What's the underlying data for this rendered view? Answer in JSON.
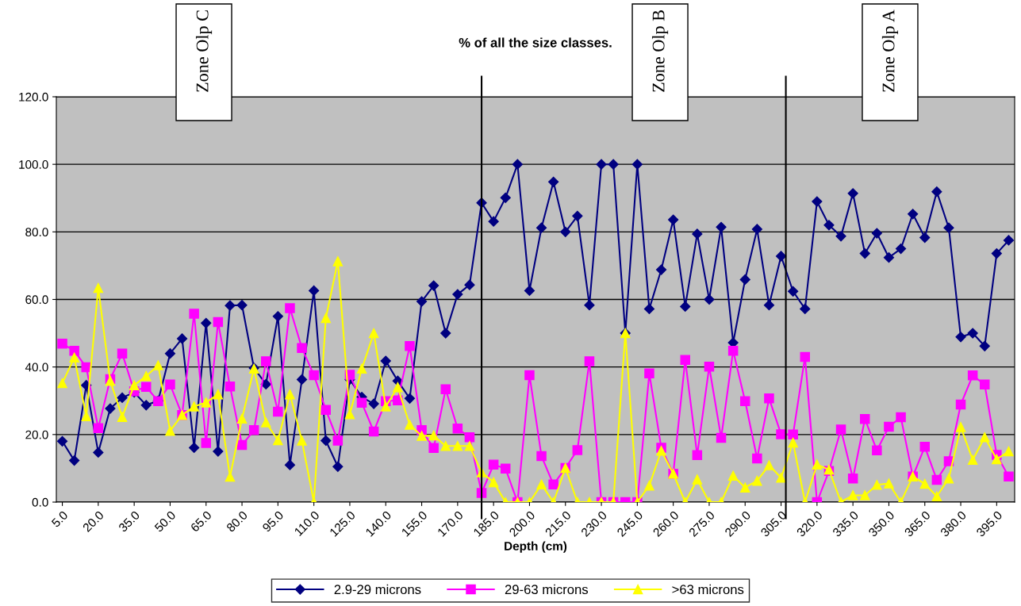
{
  "chart_data": {
    "type": "line",
    "title": "% of all the size classes.",
    "xlabel": "Depth (cm)",
    "x": [
      5,
      10,
      15,
      20,
      25,
      30,
      35,
      40,
      45,
      50,
      55,
      60,
      65,
      70,
      75,
      80,
      85,
      90,
      95,
      100,
      105,
      110,
      115,
      120,
      125,
      130,
      135,
      140,
      145,
      150,
      155,
      160,
      165,
      170,
      175,
      180,
      185,
      190,
      195,
      200,
      205,
      210,
      215,
      220,
      225,
      230,
      235,
      240,
      245,
      250,
      255,
      260,
      265,
      270,
      275,
      280,
      285,
      290,
      295,
      300,
      305,
      310,
      315,
      320,
      325,
      330,
      335,
      340,
      345,
      350,
      355,
      360,
      365,
      370,
      375,
      380,
      385,
      390,
      395,
      400
    ],
    "xlim": [
      2.5,
      402.5
    ],
    "xticks": [
      {
        "value": 5,
        "label": "5.0"
      },
      {
        "value": 20,
        "label": "20.0"
      },
      {
        "value": 35,
        "label": "35.0"
      },
      {
        "value": 50,
        "label": "50.0"
      },
      {
        "value": 65,
        "label": "65.0"
      },
      {
        "value": 80,
        "label": "80.0"
      },
      {
        "value": 95,
        "label": "95.0"
      },
      {
        "value": 110,
        "label": "110.0"
      },
      {
        "value": 125,
        "label": "125.0"
      },
      {
        "value": 140,
        "label": "140.0"
      },
      {
        "value": 155,
        "label": "155.0"
      },
      {
        "value": 170,
        "label": "170.0"
      },
      {
        "value": 185,
        "label": "185.0"
      },
      {
        "value": 200,
        "label": "200.0"
      },
      {
        "value": 215,
        "label": "215.0"
      },
      {
        "value": 230,
        "label": "230.0"
      },
      {
        "value": 245,
        "label": "245.0"
      },
      {
        "value": 260,
        "label": "260.0"
      },
      {
        "value": 275,
        "label": "275.0"
      },
      {
        "value": 290,
        "label": "290.0"
      },
      {
        "value": 305,
        "label": "305.0"
      },
      {
        "value": 320,
        "label": "320.0"
      },
      {
        "value": 335,
        "label": "335.0"
      },
      {
        "value": 350,
        "label": "350.0"
      },
      {
        "value": 365,
        "label": "365.0"
      },
      {
        "value": 380,
        "label": "380.0"
      },
      {
        "value": 395,
        "label": "395.0"
      }
    ],
    "ylim": [
      0,
      120
    ],
    "yticks": [
      {
        "value": 0,
        "label": "0.0"
      },
      {
        "value": 20,
        "label": "20.0"
      },
      {
        "value": 40,
        "label": "40.0"
      },
      {
        "value": 60,
        "label": "60.0"
      },
      {
        "value": 80,
        "label": "80.0"
      },
      {
        "value": 100,
        "label": "100.0"
      },
      {
        "value": 120,
        "label": "120.0"
      }
    ],
    "grid": "y",
    "legend": "bottom",
    "line_style": "solid",
    "series": [
      {
        "name": "2.9-29 microns",
        "color": "#000080",
        "marker": "diamond",
        "values": [
          18,
          12.3,
          34.6,
          14.7,
          27.7,
          30.9,
          32.5,
          28.7,
          30,
          44,
          48.4,
          16.1,
          53,
          15,
          58.2,
          58.3,
          39.7,
          34.9,
          55,
          11,
          36.3,
          62.6,
          18.2,
          10.5,
          36.3,
          31.1,
          29.1,
          41.8,
          35.9,
          30.7,
          59.4,
          64.1,
          50,
          61.5,
          64.3,
          88.6,
          83.1,
          90.1,
          100,
          62.6,
          81.2,
          94.8,
          80,
          84.7,
          58.3,
          100,
          100,
          50,
          100,
          57.2,
          68.8,
          83.6,
          57.9,
          79.4,
          60,
          81.4,
          47.2,
          65.9,
          80.8,
          58.3,
          72.8,
          62.4,
          57.2,
          89,
          82,
          78.7,
          91.4,
          73.6,
          79.6,
          72.4,
          75,
          85.3,
          78.3,
          91.9,
          81.2,
          48.9,
          50,
          46.2,
          73.6,
          77.5
        ]
      },
      {
        "name": "29-63 microns",
        "color": "#ff00ff",
        "marker": "square",
        "values": [
          46.9,
          44.8,
          39.9,
          21.9,
          36.4,
          44,
          32.8,
          34.1,
          29.9,
          34.8,
          25.8,
          55.8,
          17.5,
          53.3,
          34.2,
          16.9,
          21.3,
          41.7,
          26.8,
          57.4,
          45.6,
          37.6,
          27.3,
          18.2,
          37.7,
          29.4,
          20.9,
          29.9,
          30.1,
          46.2,
          21.3,
          16,
          33.4,
          21.8,
          19.2,
          2.7,
          11.1,
          9.9,
          0,
          37.6,
          13.6,
          5.2,
          10.1,
          15.4,
          41.7,
          0,
          0,
          0,
          0,
          38.1,
          16.1,
          8.4,
          42.1,
          13.9,
          40.1,
          19,
          44.8,
          29.9,
          12.9,
          30.7,
          20.1,
          20,
          43,
          0,
          9.2,
          21.5,
          7,
          24.6,
          15.3,
          22.3,
          25.1,
          7.6,
          16.4,
          6.6,
          12.1,
          28.9,
          37.5,
          34.8,
          14,
          7.6
        ]
      },
      {
        "name": ">63 microns",
        "color": "#ffff00",
        "marker": "triangle",
        "values": [
          35.2,
          42.8,
          25.4,
          63.4,
          35.9,
          25.2,
          34.6,
          37.3,
          40.5,
          21.1,
          25.8,
          28.3,
          29.5,
          31.9,
          7.5,
          24.7,
          39.5,
          23.6,
          18.3,
          31.9,
          18.2,
          0,
          54.5,
          71.3,
          26,
          39.5,
          50,
          28.3,
          34,
          22.9,
          19.6,
          19.7,
          16.6,
          16.6,
          16.6,
          8.8,
          5.9,
          0,
          0,
          0,
          5.2,
          0,
          10.1,
          0,
          0,
          0,
          0,
          50,
          0,
          4.9,
          15.2,
          8.4,
          0,
          6.7,
          0,
          0,
          7.8,
          4.3,
          6.3,
          10.9,
          7.2,
          17.6,
          0,
          11.1,
          9.6,
          0,
          2,
          2,
          5.1,
          5.5,
          0,
          7.6,
          5.4,
          1.7,
          7,
          22.2,
          12.5,
          19.2,
          12.7,
          15
        ]
      }
    ],
    "ref_lines": [
      {
        "axis": "x",
        "value": 180,
        "color": "#000000"
      },
      {
        "axis": "x",
        "value": 307,
        "color": "#000000"
      }
    ],
    "annotations": [
      "Zone Olp C",
      "Zone Olp B",
      "Zone Olp A"
    ]
  }
}
